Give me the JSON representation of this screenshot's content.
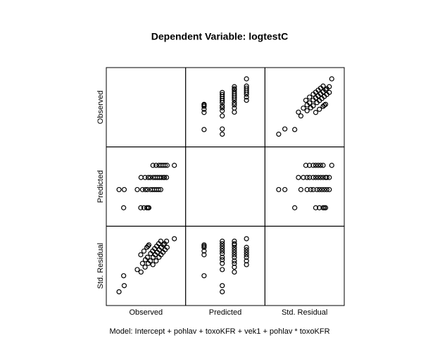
{
  "chart_data": {
    "type": "scatter_matrix",
    "title": "Dependent Variable: logtestC",
    "footnote": "Model: Intercept + pohlav + toxoKFR + vek1 + pohlav * toxoKFR",
    "marker_color": "#000000",
    "variables": [
      {
        "name": "Observed",
        "lim": [
          0.3,
          2.6
        ],
        "values": [
          0.68,
          1.27,
          1.38,
          1.48,
          1.52,
          1.55,
          0.52,
          0.7,
          1.15,
          1.33,
          1.43,
          1.5,
          1.61,
          1.68,
          1.75,
          1.82,
          1.89,
          1.96,
          1.28,
          1.42,
          1.53,
          1.6,
          1.7,
          1.77,
          1.84,
          1.91,
          1.98,
          2.05,
          2.09,
          2.16,
          1.69,
          1.8,
          1.9,
          1.97,
          2.04,
          2.11,
          2.18,
          2.43
        ]
      },
      {
        "name": "Predicted",
        "lim": [
          1.0,
          2.1
        ],
        "values": [
          1.2,
          1.2,
          1.2,
          1.2,
          1.2,
          1.2,
          1.5,
          1.5,
          1.5,
          1.5,
          1.5,
          1.5,
          1.5,
          1.5,
          1.5,
          1.5,
          1.5,
          1.5,
          1.7,
          1.7,
          1.7,
          1.7,
          1.7,
          1.7,
          1.7,
          1.7,
          1.7,
          1.7,
          1.7,
          1.7,
          1.9,
          1.9,
          1.9,
          1.9,
          1.9,
          1.9,
          1.9,
          1.9
        ]
      },
      {
        "name": "Std. Residual",
        "lim": [
          -3.4,
          2.0
        ],
        "values": [
          -1.5,
          0.2,
          0.5,
          0.8,
          0.9,
          1.0,
          -2.8,
          -2.3,
          -1.0,
          -0.5,
          -0.2,
          0,
          0.3,
          0.5,
          0.7,
          0.9,
          1.1,
          1.3,
          -1.2,
          -0.8,
          -0.5,
          -0.3,
          0,
          0.2,
          0.4,
          0.6,
          0.8,
          1.0,
          1.1,
          1.3,
          -0.6,
          -0.3,
          0,
          0.2,
          0.4,
          0.6,
          0.8,
          1.5
        ]
      }
    ]
  }
}
